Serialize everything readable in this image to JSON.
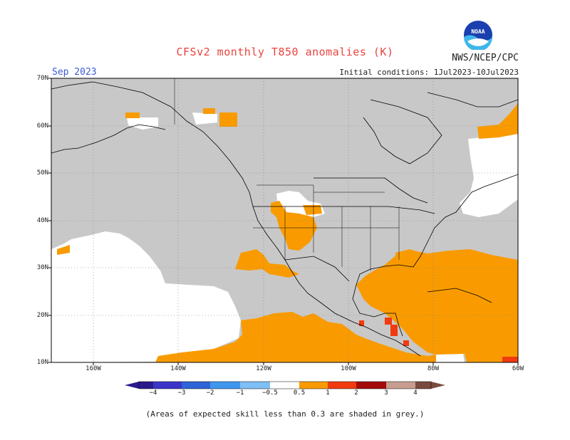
{
  "header": {
    "title": "CFSv2 monthly T850 anomalies (K)",
    "month": "Sep 2023",
    "agency": "NWS/NCEP/CPC",
    "initial_conditions": "Initial conditions: 1Jul2023-10Jul2023",
    "logo_text": "NOAA"
  },
  "map": {
    "lat_labels": [
      "70N",
      "60N",
      "50N",
      "40N",
      "30N",
      "20N",
      "10N"
    ],
    "lon_labels": [
      "160W",
      "140W",
      "120W",
      "100W",
      "80W",
      "60W"
    ],
    "lat_values": [
      70,
      60,
      50,
      40,
      30,
      20,
      10
    ],
    "lon_values": [
      -160,
      -140,
      -120,
      -100,
      -80,
      -60
    ],
    "extent": {
      "lon_min": -170,
      "lon_max": -60,
      "lat_min": 10,
      "lat_max": 70
    },
    "colors": {
      "skill_grey": "#c8c8c8",
      "warm_0_5_1": "#f99b00",
      "warm_1_2": "#f23a10",
      "warm_2_3": "#a30a0a",
      "warm_4": "#c79d90",
      "neutral": "#ffffff"
    }
  },
  "colorbar": {
    "labels": [
      "−4",
      "−3",
      "−2",
      "−1",
      "−0.5",
      "0.5",
      "1",
      "2",
      "3",
      "4"
    ],
    "colors": [
      "#2a1a8c",
      "#3a34c8",
      "#2f64d8",
      "#3f96ee",
      "#7fbff7",
      "#ffffff",
      "#f99b00",
      "#f23a10",
      "#c41a0a",
      "#8c0a0a",
      "#c79d90",
      "#7a4a3e"
    ]
  },
  "footer": {
    "note": "(Areas of expected skill less than 0.3 are shaded in grey.)"
  }
}
